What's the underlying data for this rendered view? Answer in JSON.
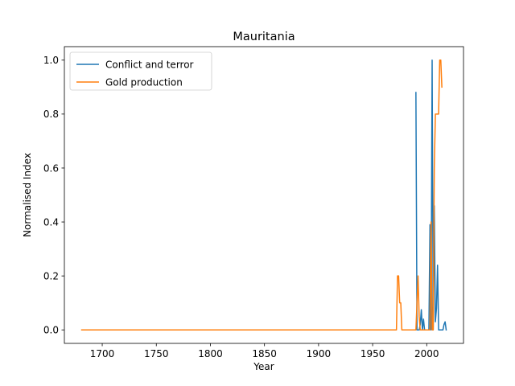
{
  "chart_data": {
    "type": "line",
    "title": "Mauritania",
    "xlabel": "Year",
    "ylabel": "Normalised Index",
    "xlim": [
      1665,
      2034
    ],
    "ylim": [
      -0.05,
      1.05
    ],
    "xticks": [
      1700,
      1750,
      1800,
      1850,
      1900,
      1950,
      2000
    ],
    "yticks": [
      0.0,
      0.2,
      0.4,
      0.6,
      0.8,
      1.0
    ],
    "xtick_labels": [
      "1700",
      "1750",
      "1800",
      "1850",
      "1900",
      "1950",
      "2000"
    ],
    "ytick_labels": [
      "0.0",
      "0.2",
      "0.4",
      "0.6",
      "0.8",
      "1.0"
    ],
    "grid": false,
    "legend": "upper-left",
    "series": [
      {
        "name": "Conflict and terror",
        "color": "#1f77b4",
        "points": [
          [
            1990,
            0.88
          ],
          [
            1991,
            0.0
          ],
          [
            1993,
            0.0
          ],
          [
            1994,
            0.02
          ],
          [
            1995,
            0.075
          ],
          [
            1996,
            0.0
          ],
          [
            1997,
            0.04
          ],
          [
            1998,
            0.0
          ],
          [
            2002,
            0.0
          ],
          [
            2003,
            0.39
          ],
          [
            2004,
            0.0
          ],
          [
            2005,
            1.0
          ],
          [
            2006,
            0.0
          ],
          [
            2007,
            0.46
          ],
          [
            2008,
            0.03
          ],
          [
            2009,
            0.08
          ],
          [
            2010,
            0.24
          ],
          [
            2011,
            0.0
          ],
          [
            2012,
            0.0
          ],
          [
            2013,
            0.0
          ],
          [
            2014,
            0.0
          ],
          [
            2015,
            0.0
          ],
          [
            2016,
            0.02
          ],
          [
            2017,
            0.03
          ],
          [
            2018,
            0.0
          ]
        ]
      },
      {
        "name": "Gold production",
        "color": "#ff7f0e",
        "points": [
          [
            1681,
            0.0
          ],
          [
            1972,
            0.0
          ],
          [
            1973,
            0.2
          ],
          [
            1974,
            0.2
          ],
          [
            1975,
            0.1
          ],
          [
            1976,
            0.1
          ],
          [
            1977,
            0.0
          ],
          [
            1990,
            0.0
          ],
          [
            1991,
            0.1
          ],
          [
            1992,
            0.2
          ],
          [
            1993,
            0.05
          ],
          [
            1994,
            0.0
          ],
          [
            2003,
            0.0
          ],
          [
            2004,
            0.4
          ],
          [
            2005,
            0.0
          ],
          [
            2006,
            0.0
          ],
          [
            2007,
            0.6
          ],
          [
            2008,
            0.8
          ],
          [
            2009,
            0.8
          ],
          [
            2010,
            0.8
          ],
          [
            2011,
            0.8
          ],
          [
            2012,
            1.0
          ],
          [
            2013,
            1.0
          ],
          [
            2014,
            0.9
          ]
        ]
      }
    ]
  }
}
